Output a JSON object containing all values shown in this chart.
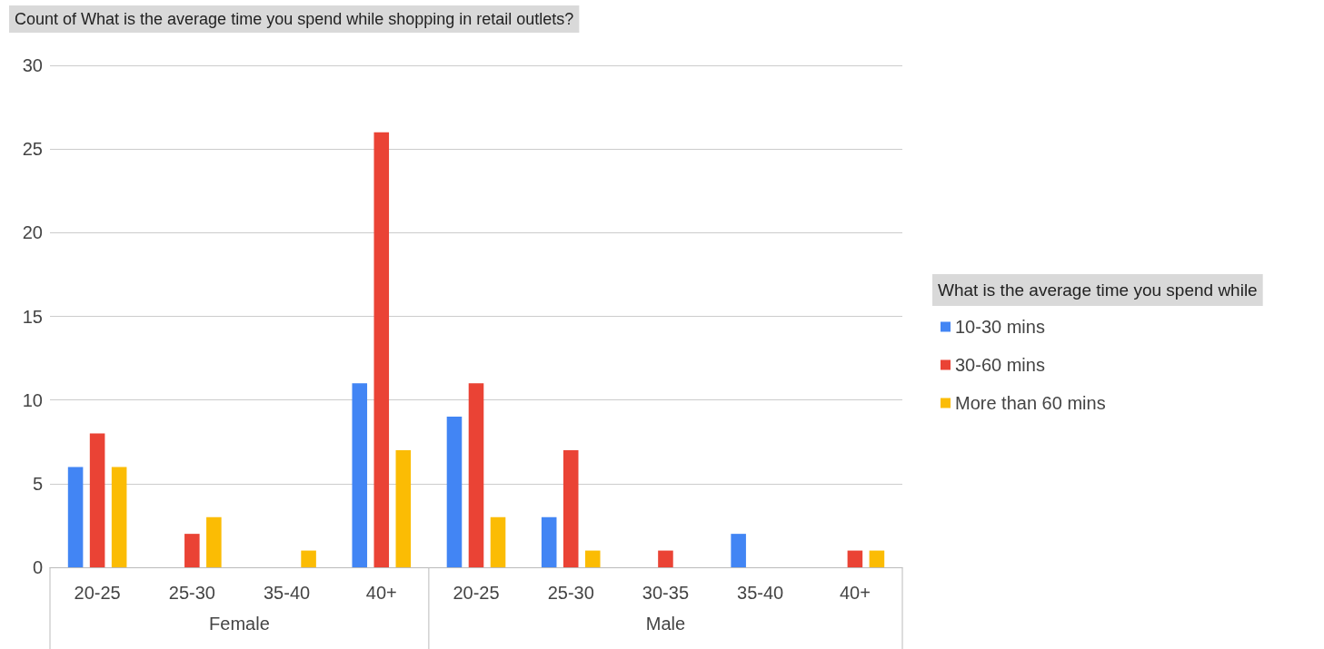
{
  "chart_data": {
    "type": "bar",
    "title": "Count of What is the average time you spend while shopping in retail outlets?",
    "legend_title": "What is the average time you spend while",
    "categories": [
      "20-25",
      "25-30",
      "35-40",
      "40+",
      "20-25",
      "25-30",
      "30-35",
      "35-40",
      "40+"
    ],
    "annotations": [
      "Female",
      "Male"
    ],
    "series": [
      {
        "name": "10-30 mins",
        "color": "#4285f4",
        "values": [
          6,
          null,
          null,
          11,
          9,
          3,
          null,
          2,
          null
        ]
      },
      {
        "name": "30-60 mins",
        "color": "#ea4335",
        "values": [
          8,
          2,
          null,
          26,
          11,
          7,
          1,
          null,
          1
        ]
      },
      {
        "name": "More than 60 mins",
        "color": "#fbbc04",
        "values": [
          6,
          3,
          1,
          7,
          3,
          1,
          null,
          null,
          1
        ]
      }
    ],
    "ylim": [
      0,
      30
    ],
    "yticks": [
      0,
      5,
      10,
      15,
      20,
      25,
      30
    ],
    "grid": "y",
    "legend": "right"
  }
}
